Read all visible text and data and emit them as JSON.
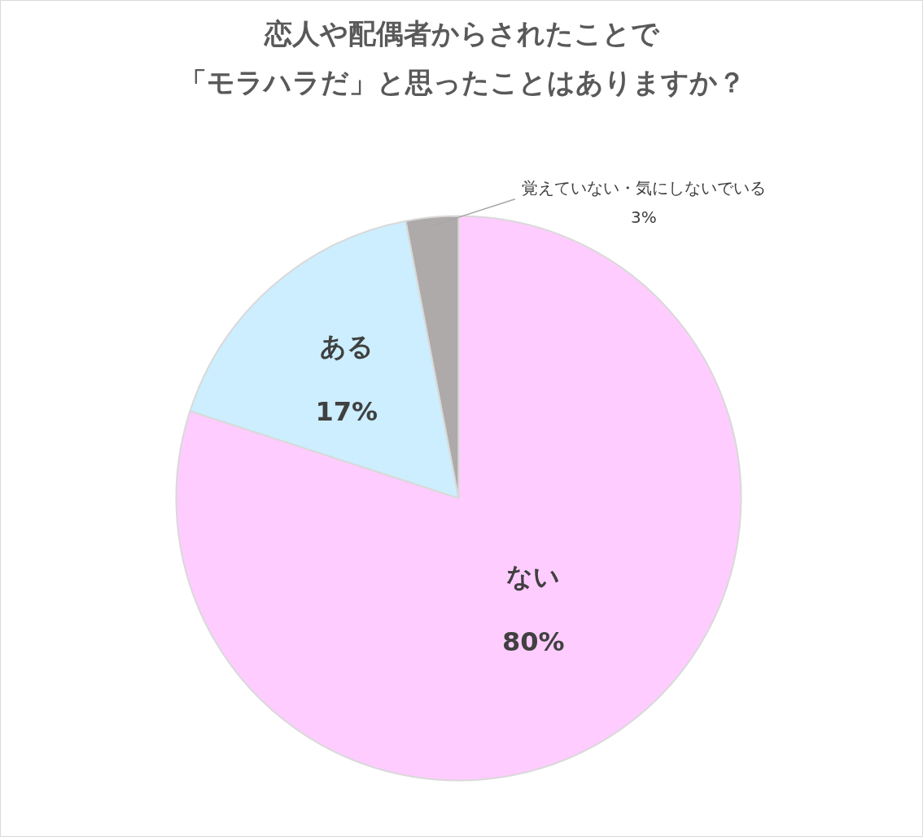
{
  "chart_data": {
    "type": "pie",
    "title": "恋人や配偶者からされたことで「モラハラだ」と思ったことはありますか？",
    "categories": [
      "ない",
      "ある",
      "覚えていない・気にしないでいる"
    ],
    "values": [
      80,
      17,
      3
    ],
    "value_labels": [
      "80%",
      "17%",
      "3%"
    ],
    "colors": [
      "#ffccff",
      "#cceeff",
      "#aeaaaa"
    ]
  }
}
